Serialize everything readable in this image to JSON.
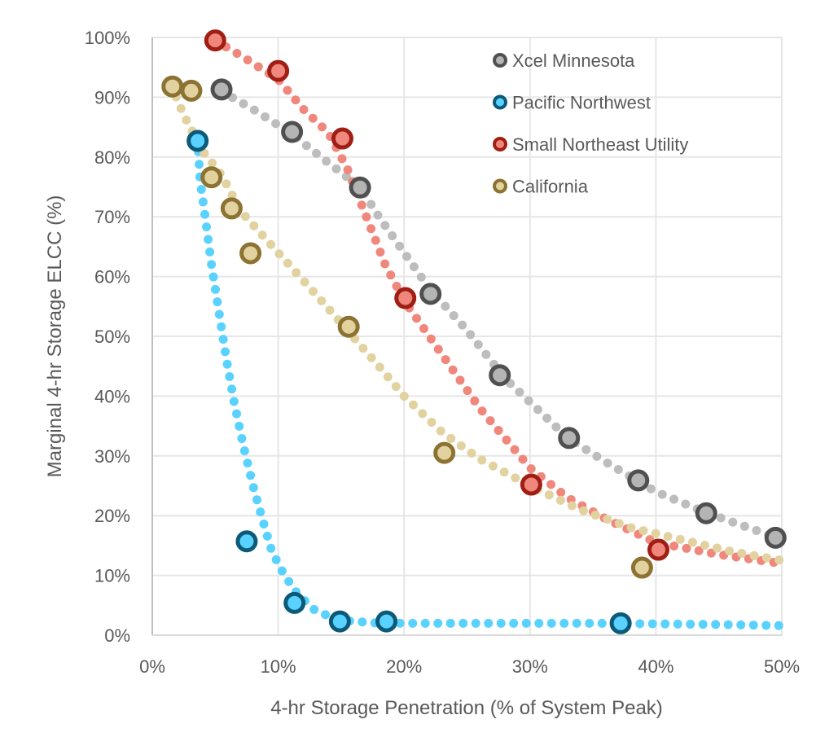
{
  "chart_data": {
    "type": "scatter",
    "title": "",
    "xlabel": "4-hr Storage Penetration (% of System Peak)",
    "ylabel": "Marginal 4-hr Storage ELCC (%)",
    "xlim": [
      0,
      50
    ],
    "ylim": [
      0,
      100
    ],
    "x_ticks": [
      "0%",
      "10%",
      "20%",
      "30%",
      "40%",
      "50%"
    ],
    "y_ticks": [
      "0%",
      "10%",
      "20%",
      "30%",
      "40%",
      "50%",
      "60%",
      "70%",
      "80%",
      "90%",
      "100%"
    ],
    "grid": true,
    "legend_position": "top-right",
    "series": [
      {
        "name": "Xcel Minnesota",
        "edge_color": "#505050",
        "fill_color": "#b4b4b4",
        "trend_color": "#bdbdbd",
        "points": [
          [
            5.5,
            91.3
          ],
          [
            11.1,
            84.2
          ],
          [
            16.5,
            74.9
          ],
          [
            22.1,
            57.1
          ],
          [
            27.6,
            43.5
          ],
          [
            33.1,
            33.0
          ],
          [
            38.6,
            25.9
          ],
          [
            44.0,
            20.4
          ],
          [
            49.5,
            16.3
          ]
        ],
        "trend": [
          [
            5.5,
            91
          ],
          [
            8,
            88
          ],
          [
            11,
            84
          ],
          [
            14,
            79
          ],
          [
            16.5,
            75
          ],
          [
            18,
            70
          ],
          [
            20,
            64
          ],
          [
            22,
            58
          ],
          [
            25,
            51
          ],
          [
            28,
            43
          ],
          [
            31,
            37
          ],
          [
            33,
            33
          ],
          [
            36,
            29
          ],
          [
            40,
            24
          ],
          [
            44,
            20.5
          ],
          [
            48,
            17.5
          ],
          [
            50,
            16
          ]
        ]
      },
      {
        "name": "Pacific Northwest",
        "edge_color": "#0c5a78",
        "fill_color": "#5ad2ff",
        "trend_color": "#5ad2ff",
        "points": [
          [
            3.6,
            82.7
          ],
          [
            7.5,
            15.7
          ],
          [
            11.3,
            5.4
          ],
          [
            14.9,
            2.3
          ],
          [
            18.6,
            2.3
          ],
          [
            37.2,
            2.0
          ]
        ],
        "trend": [
          [
            3.6,
            83
          ],
          [
            3.8,
            76
          ],
          [
            4.2,
            70
          ],
          [
            4.7,
            62
          ],
          [
            5.3,
            54
          ],
          [
            5.9,
            46
          ],
          [
            6.5,
            39
          ],
          [
            7.2,
            32
          ],
          [
            8,
            25
          ],
          [
            8.8,
            19
          ],
          [
            9.5,
            14
          ],
          [
            10.5,
            10
          ],
          [
            11.5,
            7
          ],
          [
            13,
            4
          ],
          [
            15,
            2.5
          ],
          [
            18,
            2
          ],
          [
            25,
            2
          ],
          [
            35,
            2
          ],
          [
            45,
            1.8
          ],
          [
            50,
            1.6
          ]
        ]
      },
      {
        "name": "Small Northeast Utility",
        "edge_color": "#a01e14",
        "fill_color": "#f0877d",
        "trend_color": "#f0877d",
        "points": [
          [
            5.0,
            99.5
          ],
          [
            10.0,
            94.4
          ],
          [
            15.1,
            83.1
          ],
          [
            20.1,
            56.4
          ],
          [
            30.1,
            25.2
          ],
          [
            40.2,
            14.3
          ]
        ],
        "trend": [
          [
            5,
            99.5
          ],
          [
            7,
            97
          ],
          [
            10,
            93
          ],
          [
            12,
            88
          ],
          [
            14,
            84
          ],
          [
            15.5,
            78
          ],
          [
            17,
            70
          ],
          [
            18.5,
            62
          ],
          [
            20,
            56
          ],
          [
            22,
            50
          ],
          [
            24,
            44
          ],
          [
            26,
            38
          ],
          [
            28,
            33
          ],
          [
            30,
            28
          ],
          [
            33,
            23
          ],
          [
            36,
            19.5
          ],
          [
            40,
            15.5
          ],
          [
            45,
            13.5
          ],
          [
            50,
            12
          ]
        ]
      },
      {
        "name": "California",
        "edge_color": "#8c7332",
        "fill_color": "#e1d2a0",
        "trend_color": "#e1d2a0",
        "points": [
          [
            1.6,
            91.8
          ],
          [
            3.1,
            91.1
          ],
          [
            4.7,
            76.6
          ],
          [
            6.3,
            71.4
          ],
          [
            7.8,
            63.9
          ],
          [
            15.6,
            51.6
          ],
          [
            23.2,
            30.5
          ],
          [
            38.9,
            11.3
          ]
        ],
        "trend": [
          [
            1.5,
            92
          ],
          [
            2.5,
            87
          ],
          [
            4,
            81
          ],
          [
            5.5,
            77
          ],
          [
            7,
            71
          ],
          [
            10,
            64
          ],
          [
            13,
            57
          ],
          [
            15.5,
            51
          ],
          [
            18,
            45
          ],
          [
            20,
            40
          ],
          [
            23,
            34
          ],
          [
            26,
            29.5
          ],
          [
            30,
            25
          ],
          [
            34,
            21
          ],
          [
            38,
            18
          ],
          [
            42,
            16
          ],
          [
            46,
            14
          ],
          [
            50,
            12.5
          ]
        ]
      }
    ]
  }
}
